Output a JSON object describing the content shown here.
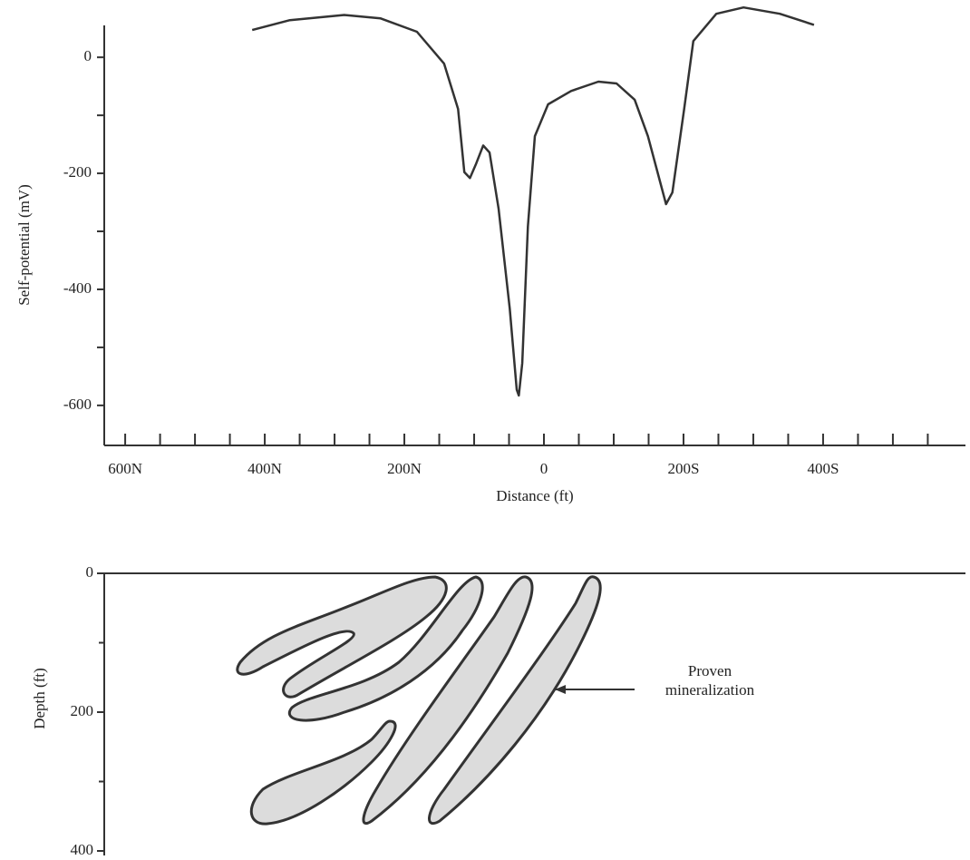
{
  "chart_data": {
    "type": "line",
    "xlabel": "Distance (ft)",
    "ylabel": "Self-potential (mV)",
    "x": [
      -418,
      -364,
      -286,
      -234,
      -182,
      -143,
      -123,
      -114,
      -106,
      -97,
      -87,
      -78,
      -65,
      -49,
      -39,
      -36,
      -31,
      -23,
      -13,
      6,
      39,
      78,
      104,
      130,
      149,
      175,
      184,
      201,
      214,
      247,
      286,
      338,
      387
    ],
    "values": [
      47,
      64,
      73,
      67,
      44,
      -11,
      -89,
      -198,
      -208,
      -183,
      -152,
      -164,
      -261,
      -433,
      -573,
      -583,
      -527,
      -292,
      -136,
      -81,
      -58,
      -42,
      -45,
      -73,
      -136,
      -253,
      -233,
      -89,
      28,
      75,
      86,
      75,
      56
    ],
    "color": "#333333",
    "xlim": [
      -630,
      604
    ],
    "ylim": [
      -669,
      55
    ],
    "xticks": [
      {
        "value": -600,
        "label": "600N"
      },
      {
        "value": -400,
        "label": "400N"
      },
      {
        "value": -200,
        "label": "200N"
      },
      0,
      {
        "value": 200,
        "label": "200S"
      },
      {
        "value": 400,
        "label": "400S"
      }
    ],
    "xminorticks": [
      -550,
      -500,
      -450,
      -350,
      -300,
      -250,
      -150,
      -100,
      -50,
      50,
      100,
      150,
      250,
      300,
      350,
      450,
      500,
      550
    ],
    "yticks": [
      0,
      -200,
      -400,
      -600
    ],
    "yminorticks": [
      -100,
      -300,
      -500
    ]
  },
  "section": {
    "ylabel": "Depth (ft)",
    "ylim": [
      0,
      400
    ],
    "yticks": [
      0,
      200,
      400
    ],
    "yminorticks": [
      100,
      300
    ],
    "annotation": [
      "Proven",
      "mineralization"
    ]
  }
}
